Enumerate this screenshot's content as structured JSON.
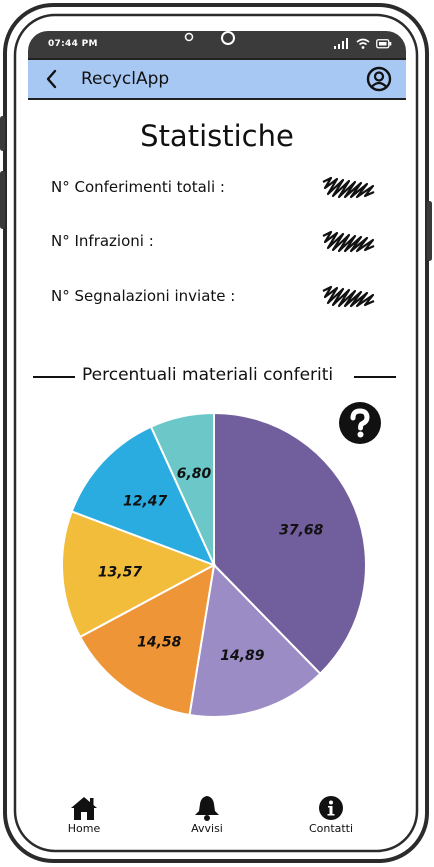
{
  "status_bar": {
    "time": "07:44 PM"
  },
  "app_bar": {
    "title": "RecyclApp",
    "back_icon": "chevron-left-icon",
    "profile_icon": "user-circle-icon",
    "background": "#a8c8f4"
  },
  "page": {
    "title": "Statistiche"
  },
  "stats": [
    {
      "label": "N° Conferimenti totali :"
    },
    {
      "label": "N° Infrazioni :"
    },
    {
      "label": "N° Segnalazioni inviate :"
    }
  ],
  "section": {
    "title": "Percentuali materiali conferiti",
    "help_icon": "question-circle-icon"
  },
  "chart_data": {
    "type": "pie",
    "slices": [
      {
        "label": "37,68",
        "value": 37.68,
        "color": "#715e9c"
      },
      {
        "label": "14,89",
        "value": 14.89,
        "color": "#9b8cc6"
      },
      {
        "label": "14,58",
        "value": 14.58,
        "color": "#ee9538"
      },
      {
        "label": "13,57",
        "value": 13.57,
        "color": "#f3bd3c"
      },
      {
        "label": "12,47",
        "value": 12.47,
        "color": "#2aace0"
      },
      {
        "label": "6,80",
        "value": 6.8,
        "color": "#6cc8c8"
      }
    ]
  },
  "tab_bar": {
    "items": [
      {
        "label": "Home",
        "icon": "home-icon"
      },
      {
        "label": "Avvisi",
        "icon": "bell-icon"
      },
      {
        "label": "Contatti",
        "icon": "info-icon"
      }
    ]
  }
}
